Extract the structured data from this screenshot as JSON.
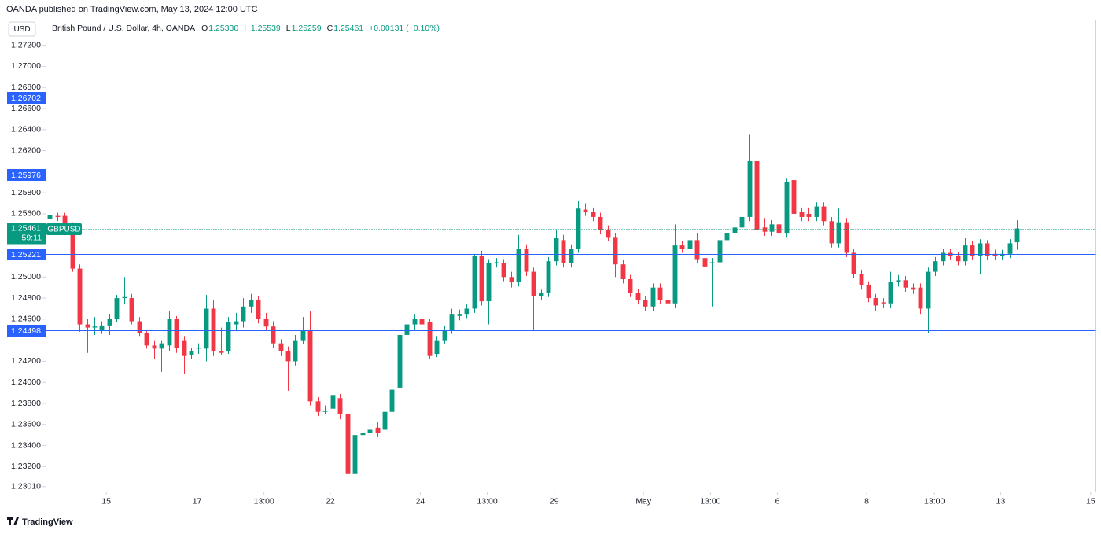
{
  "header": "OANDA published on TradingView.com, May 13, 2024 12:00 UTC",
  "footer": "TradingView",
  "chart_data": {
    "type": "candlestick",
    "currency": "USD",
    "symbol_title": "British Pound / U.S. Dollar, 4h, OANDA",
    "legend": [
      {
        "key": "O",
        "value": "1.25330"
      },
      {
        "key": "H",
        "value": "1.25539"
      },
      {
        "key": "L",
        "value": "1.25259"
      },
      {
        "key": "C",
        "value": "1.25461"
      }
    ],
    "change": "+0.00131 (+0.10%)",
    "symbol": "GBPUSD",
    "last_price": 1.25461,
    "countdown": "59:11",
    "levels": [
      1.26702,
      1.25976,
      1.25221,
      1.24498
    ],
    "up_color": "#089981",
    "down_color": "#f23645",
    "level_color": "#2962ff",
    "ylim": [
      1.2296,
      1.2744
    ],
    "yticks": [
      {
        "value": 1.272,
        "label": "1.27200"
      },
      {
        "value": 1.27,
        "label": "1.27000"
      },
      {
        "value": 1.268,
        "label": "1.26800"
      },
      {
        "value": 1.266,
        "label": "1.26600"
      },
      {
        "value": 1.264,
        "label": "1.26400"
      },
      {
        "value": 1.262,
        "label": "1.26200"
      },
      {
        "value": 1.258,
        "label": "1.25800"
      },
      {
        "value": 1.256,
        "label": "1.25600"
      },
      {
        "value": 1.25,
        "label": "1.25000"
      },
      {
        "value": 1.248,
        "label": "1.24800"
      },
      {
        "value": 1.246,
        "label": "1.24600"
      },
      {
        "value": 1.242,
        "label": "1.24200"
      },
      {
        "value": 1.24,
        "label": "1.24000"
      },
      {
        "value": 1.238,
        "label": "1.23800"
      },
      {
        "value": 1.236,
        "label": "1.23600"
      },
      {
        "value": 1.234,
        "label": "1.23400"
      },
      {
        "value": 1.232,
        "label": "1.23200"
      },
      {
        "value": 1.2301,
        "label": "1.23010"
      }
    ],
    "xlim": [
      -0.5,
      140.6
    ],
    "xticks": [
      {
        "value": 7.6,
        "label": "15"
      },
      {
        "value": 19.8,
        "label": "17"
      },
      {
        "value": 28.8,
        "label": "13:00"
      },
      {
        "value": 37.7,
        "label": "22"
      },
      {
        "value": 49.8,
        "label": "24"
      },
      {
        "value": 58.8,
        "label": "13:00"
      },
      {
        "value": 67.8,
        "label": "29"
      },
      {
        "value": 79.8,
        "label": "May"
      },
      {
        "value": 88.8,
        "label": "13:00"
      },
      {
        "value": 97.8,
        "label": "6"
      },
      {
        "value": 109.8,
        "label": "8"
      },
      {
        "value": 118.9,
        "label": "13:00"
      },
      {
        "value": 127.8,
        "label": "13"
      },
      {
        "value": 139.9,
        "label": "15"
      }
    ],
    "candles": [
      [
        1.2555,
        1.2565,
        1.255,
        1.2559
      ],
      [
        1.2558,
        1.2561,
        1.2553,
        1.2557
      ],
      [
        1.2558,
        1.2561,
        1.2546,
        1.255
      ],
      [
        1.255,
        1.2552,
        1.2505,
        1.2508
      ],
      [
        1.2508,
        1.2512,
        1.2448,
        1.2455
      ],
      [
        1.2455,
        1.246,
        1.2428,
        1.2452
      ],
      [
        1.2452,
        1.2462,
        1.2445,
        1.2453
      ],
      [
        1.245,
        1.2458,
        1.2446,
        1.2454
      ],
      [
        1.2454,
        1.2465,
        1.2445,
        1.246
      ],
      [
        1.246,
        1.2483,
        1.2457,
        1.248
      ],
      [
        1.248,
        1.25,
        1.2474,
        1.2481
      ],
      [
        1.248,
        1.2484,
        1.2455,
        1.2458
      ],
      [
        1.2458,
        1.2462,
        1.2444,
        1.2447
      ],
      [
        1.2447,
        1.245,
        1.2432,
        1.2435
      ],
      [
        1.2435,
        1.244,
        1.2422,
        1.2432
      ],
      [
        1.2432,
        1.244,
        1.241,
        1.2437
      ],
      [
        1.2435,
        1.2468,
        1.243,
        1.246
      ],
      [
        1.246,
        1.2463,
        1.2428,
        1.2433
      ],
      [
        1.244,
        1.2444,
        1.2408,
        1.2425
      ],
      [
        1.2426,
        1.2433,
        1.2422,
        1.243
      ],
      [
        1.2432,
        1.2437,
        1.2427,
        1.2433
      ],
      [
        1.2432,
        1.2483,
        1.242,
        1.247
      ],
      [
        1.247,
        1.2478,
        1.2425,
        1.243
      ],
      [
        1.243,
        1.2452,
        1.2426,
        1.2428
      ],
      [
        1.243,
        1.2462,
        1.2427,
        1.2457
      ],
      [
        1.2455,
        1.2466,
        1.245,
        1.2458
      ],
      [
        1.2458,
        1.248,
        1.2452,
        1.2472
      ],
      [
        1.2472,
        1.2484,
        1.2466,
        1.2478
      ],
      [
        1.2478,
        1.2482,
        1.2456,
        1.246
      ],
      [
        1.246,
        1.2466,
        1.245,
        1.2453
      ],
      [
        1.2453,
        1.2458,
        1.2433,
        1.2437
      ],
      [
        1.2437,
        1.2441,
        1.2425,
        1.243
      ],
      [
        1.243,
        1.2434,
        1.2392,
        1.242
      ],
      [
        1.242,
        1.2445,
        1.2416,
        1.244
      ],
      [
        1.244,
        1.2462,
        1.2436,
        1.245
      ],
      [
        1.245,
        1.2468,
        1.2378,
        1.2382
      ],
      [
        1.2382,
        1.2386,
        1.2368,
        1.2372
      ],
      [
        1.2372,
        1.2378,
        1.237,
        1.2373
      ],
      [
        1.2375,
        1.239,
        1.2371,
        1.2388
      ],
      [
        1.2385,
        1.2389,
        1.2365,
        1.237
      ],
      [
        1.237,
        1.2373,
        1.231,
        1.2313
      ],
      [
        1.2313,
        1.2352,
        1.2303,
        1.235
      ],
      [
        1.235,
        1.2356,
        1.2346,
        1.2352
      ],
      [
        1.2352,
        1.2358,
        1.2348,
        1.2355
      ],
      [
        1.2357,
        1.2362,
        1.2348,
        1.2352
      ],
      [
        1.2355,
        1.2378,
        1.2335,
        1.2372
      ],
      [
        1.2372,
        1.2397,
        1.235,
        1.2393
      ],
      [
        1.2395,
        1.2452,
        1.239,
        1.2445
      ],
      [
        1.2445,
        1.2462,
        1.244,
        1.2455
      ],
      [
        1.2455,
        1.2465,
        1.245,
        1.246
      ],
      [
        1.246,
        1.2466,
        1.2451,
        1.2455
      ],
      [
        1.2457,
        1.246,
        1.2422,
        1.2425
      ],
      [
        1.2427,
        1.2444,
        1.2424,
        1.244
      ],
      [
        1.244,
        1.2454,
        1.2436,
        1.245
      ],
      [
        1.245,
        1.247,
        1.2446,
        1.2465
      ],
      [
        1.2463,
        1.2469,
        1.2459,
        1.2465
      ],
      [
        1.2465,
        1.2474,
        1.2461,
        1.247
      ],
      [
        1.247,
        1.2522,
        1.2466,
        1.252
      ],
      [
        1.252,
        1.2525,
        1.2473,
        1.2477
      ],
      [
        1.2477,
        1.2517,
        1.2455,
        1.2513
      ],
      [
        1.2513,
        1.2518,
        1.2509,
        1.2514
      ],
      [
        1.2513,
        1.2517,
        1.2496,
        1.25
      ],
      [
        1.25,
        1.2505,
        1.249,
        1.2495
      ],
      [
        1.2495,
        1.254,
        1.2491,
        1.2527
      ],
      [
        1.2527,
        1.2531,
        1.2501,
        1.2505
      ],
      [
        1.2505,
        1.2509,
        1.245,
        1.2482
      ],
      [
        1.2482,
        1.2488,
        1.2478,
        1.2485
      ],
      [
        1.2485,
        1.2519,
        1.2481,
        1.2515
      ],
      [
        1.2515,
        1.2545,
        1.2511,
        1.2537
      ],
      [
        1.2535,
        1.254,
        1.2509,
        1.2513
      ],
      [
        1.2513,
        1.2531,
        1.2509,
        1.2527
      ],
      [
        1.2527,
        1.2572,
        1.2523,
        1.2565
      ],
      [
        1.2564,
        1.257,
        1.2558,
        1.2562
      ],
      [
        1.2562,
        1.2566,
        1.2553,
        1.2557
      ],
      [
        1.2557,
        1.2561,
        1.2541,
        1.2545
      ],
      [
        1.2545,
        1.2549,
        1.2534,
        1.2538
      ],
      [
        1.2538,
        1.2542,
        1.25,
        1.2512
      ],
      [
        1.2512,
        1.2516,
        1.2494,
        1.2498
      ],
      [
        1.2498,
        1.2502,
        1.2481,
        1.2485
      ],
      [
        1.2485,
        1.2489,
        1.2474,
        1.2478
      ],
      [
        1.2478,
        1.2482,
        1.2468,
        1.2472
      ],
      [
        1.2472,
        1.2494,
        1.2468,
        1.249
      ],
      [
        1.249,
        1.2494,
        1.2474,
        1.2478
      ],
      [
        1.2478,
        1.2484,
        1.2472,
        1.2475
      ],
      [
        1.2475,
        1.255,
        1.2471,
        1.253
      ],
      [
        1.253,
        1.2534,
        1.2523,
        1.2527
      ],
      [
        1.2527,
        1.254,
        1.2523,
        1.2535
      ],
      [
        1.2535,
        1.2542,
        1.2513,
        1.2517
      ],
      [
        1.2518,
        1.2522,
        1.2506,
        1.251
      ],
      [
        1.2513,
        1.2518,
        1.2472,
        1.2514
      ],
      [
        1.2514,
        1.2539,
        1.251,
        1.2535
      ],
      [
        1.2535,
        1.2546,
        1.2531,
        1.2542
      ],
      [
        1.2542,
        1.2551,
        1.2538,
        1.2547
      ],
      [
        1.2547,
        1.2563,
        1.2543,
        1.2557
      ],
      [
        1.2557,
        1.2635,
        1.2553,
        1.261
      ],
      [
        1.261,
        1.2615,
        1.2532,
        1.2545
      ],
      [
        1.2547,
        1.2556,
        1.2539,
        1.2543
      ],
      [
        1.2543,
        1.2554,
        1.2539,
        1.255
      ],
      [
        1.255,
        1.2555,
        1.2538,
        1.2542
      ],
      [
        1.2542,
        1.2594,
        1.2538,
        1.259
      ],
      [
        1.2592,
        1.2593,
        1.2556,
        1.256
      ],
      [
        1.2562,
        1.2566,
        1.2553,
        1.2557
      ],
      [
        1.256,
        1.2566,
        1.2553,
        1.2557
      ],
      [
        1.2557,
        1.2571,
        1.2553,
        1.2567
      ],
      [
        1.2567,
        1.2571,
        1.2549,
        1.2553
      ],
      [
        1.2553,
        1.2557,
        1.2528,
        1.2532
      ],
      [
        1.2532,
        1.2565,
        1.2528,
        1.2552
      ],
      [
        1.2552,
        1.2556,
        1.2519,
        1.2523
      ],
      [
        1.2523,
        1.2527,
        1.2499,
        1.2503
      ],
      [
        1.2503,
        1.2507,
        1.2488,
        1.2492
      ],
      [
        1.2492,
        1.2496,
        1.2476,
        1.248
      ],
      [
        1.248,
        1.2484,
        1.2468,
        1.2473
      ],
      [
        1.2476,
        1.248,
        1.2471,
        1.2475
      ],
      [
        1.2475,
        1.2505,
        1.2471,
        1.2495
      ],
      [
        1.2495,
        1.2502,
        1.2491,
        1.2497
      ],
      [
        1.2497,
        1.2501,
        1.2486,
        1.249
      ],
      [
        1.249,
        1.2494,
        1.2484,
        1.2488
      ],
      [
        1.249,
        1.2494,
        1.2465,
        1.247
      ],
      [
        1.247,
        1.2509,
        1.2447,
        1.2505
      ],
      [
        1.2505,
        1.2519,
        1.2501,
        1.2515
      ],
      [
        1.2515,
        1.2527,
        1.2511,
        1.2523
      ],
      [
        1.2523,
        1.2527,
        1.2516,
        1.252
      ],
      [
        1.252,
        1.2524,
        1.2511,
        1.2515
      ],
      [
        1.2515,
        1.2537,
        1.2511,
        1.253
      ],
      [
        1.253,
        1.2534,
        1.2516,
        1.252
      ],
      [
        1.252,
        1.2536,
        1.2503,
        1.2532
      ],
      [
        1.2532,
        1.2535,
        1.2516,
        1.252
      ],
      [
        1.2522,
        1.2526,
        1.2516,
        1.252
      ],
      [
        1.252,
        1.2526,
        1.2516,
        1.2522
      ],
      [
        1.2522,
        1.2536,
        1.2518,
        1.2532
      ],
      [
        1.2533,
        1.25539,
        1.25259,
        1.25461
      ]
    ]
  }
}
